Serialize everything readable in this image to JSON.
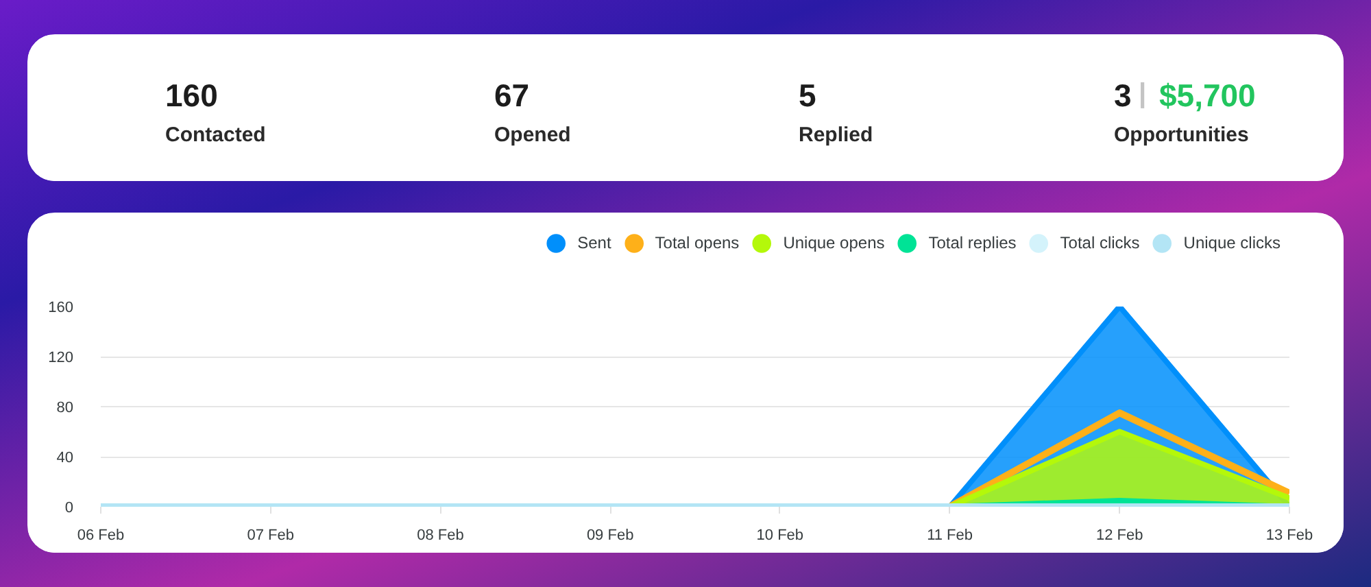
{
  "chart_data": [
    {
      "type": "other",
      "annotations": [
        "160",
        "Contacted",
        "67",
        "Opened",
        "5",
        "Replied",
        "3",
        "|",
        "$5,700",
        "Opportunities"
      ]
    },
    {
      "type": "area",
      "categories": [
        "06 Feb",
        "07 Feb",
        "08 Feb",
        "09 Feb",
        "10 Feb",
        "11 Feb",
        "12 Feb",
        "13 Feb"
      ],
      "series": [
        {
          "name": "Sent",
          "type": "area",
          "color": "#008ffb",
          "values": [
            null,
            null,
            null,
            null,
            null,
            0,
            160,
            0
          ]
        },
        {
          "name": "Total opens",
          "type": "line",
          "color": "#feb019",
          "values": [
            null,
            null,
            null,
            null,
            null,
            0,
            75,
            11
          ]
        },
        {
          "name": "Unique opens",
          "type": "area",
          "color": "#b4f80a",
          "values": [
            null,
            null,
            null,
            null,
            null,
            0,
            60,
            7
          ]
        },
        {
          "name": "Total replies",
          "type": "area",
          "color": "#00e396",
          "values": [
            null,
            null,
            null,
            null,
            null,
            0,
            5,
            0
          ]
        },
        {
          "name": "Total clicks",
          "type": "area",
          "color": "#d4f3fb",
          "values": [
            null,
            null,
            null,
            null,
            null,
            null,
            null,
            null
          ]
        },
        {
          "name": "Unique clicks",
          "type": "line",
          "color": "#b3e5f5",
          "values": [
            0,
            0,
            0,
            0,
            0,
            0,
            0,
            0
          ]
        }
      ],
      "ylim": [
        0,
        160
      ],
      "yticks": [
        0,
        40,
        80,
        120,
        160
      ],
      "grid": "y",
      "legend": "top right"
    }
  ]
}
